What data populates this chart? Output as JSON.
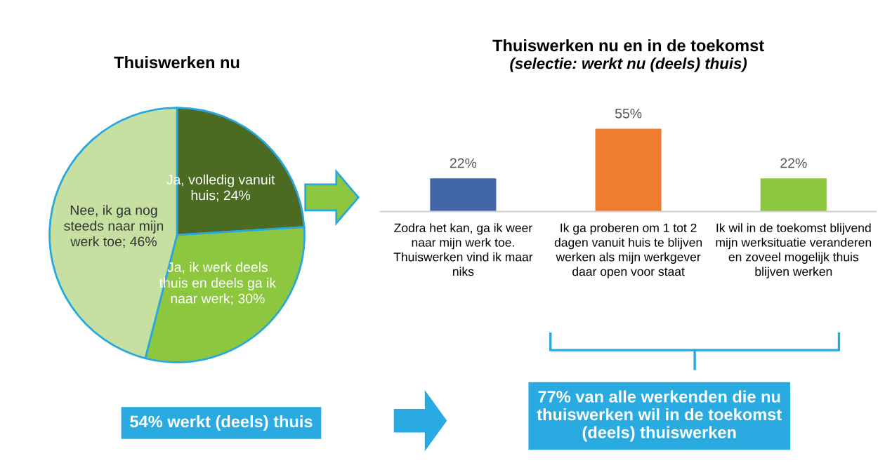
{
  "chart_data": [
    {
      "type": "pie",
      "title": "Thuiswerken nu",
      "categories": [
        "Ja, volledig vanuit\nhuis; 24%",
        "Ja, ik werk deels\nthuis en deels ga ik\nnaar werk; 30%",
        "Nee, ik ga nog\nsteeds naar mijn\nwerk toe; 46%"
      ],
      "values": [
        24,
        30,
        46
      ],
      "colors": [
        "#4b6b23",
        "#8dc63f",
        "#c6e0a2"
      ],
      "annotations": [
        "54% werkt (deels) thuis"
      ]
    },
    {
      "type": "bar",
      "title": "Thuiswerken nu en in de toekomst",
      "subtitle": "(selectie: werkt nu (deels) thuis)",
      "categories": [
        "Zodra het kan, ga ik weer\nnaar mijn werk toe.\nThuiswerken vind ik maar\nniks",
        "Ik ga proberen om 1 tot 2\ndagen vanuit huis te blijven\nwerken als mijn werkgever\ndaar open voor staat",
        "Ik wil in de toekomst blijvend\nmijn werksituatie veranderen\nen zoveel mogelijk thuis\nblijven werken"
      ],
      "values": [
        22,
        55,
        22
      ],
      "colors": [
        "#4267a8",
        "#ef7d2f",
        "#8dc63f"
      ],
      "value_labels": [
        "22%",
        "55%",
        "22%"
      ],
      "annotations": [
        "77% van alle werkenden die nu\nthuiswerken wil in de toekomst\n(deels) thuiswerken"
      ]
    }
  ]
}
